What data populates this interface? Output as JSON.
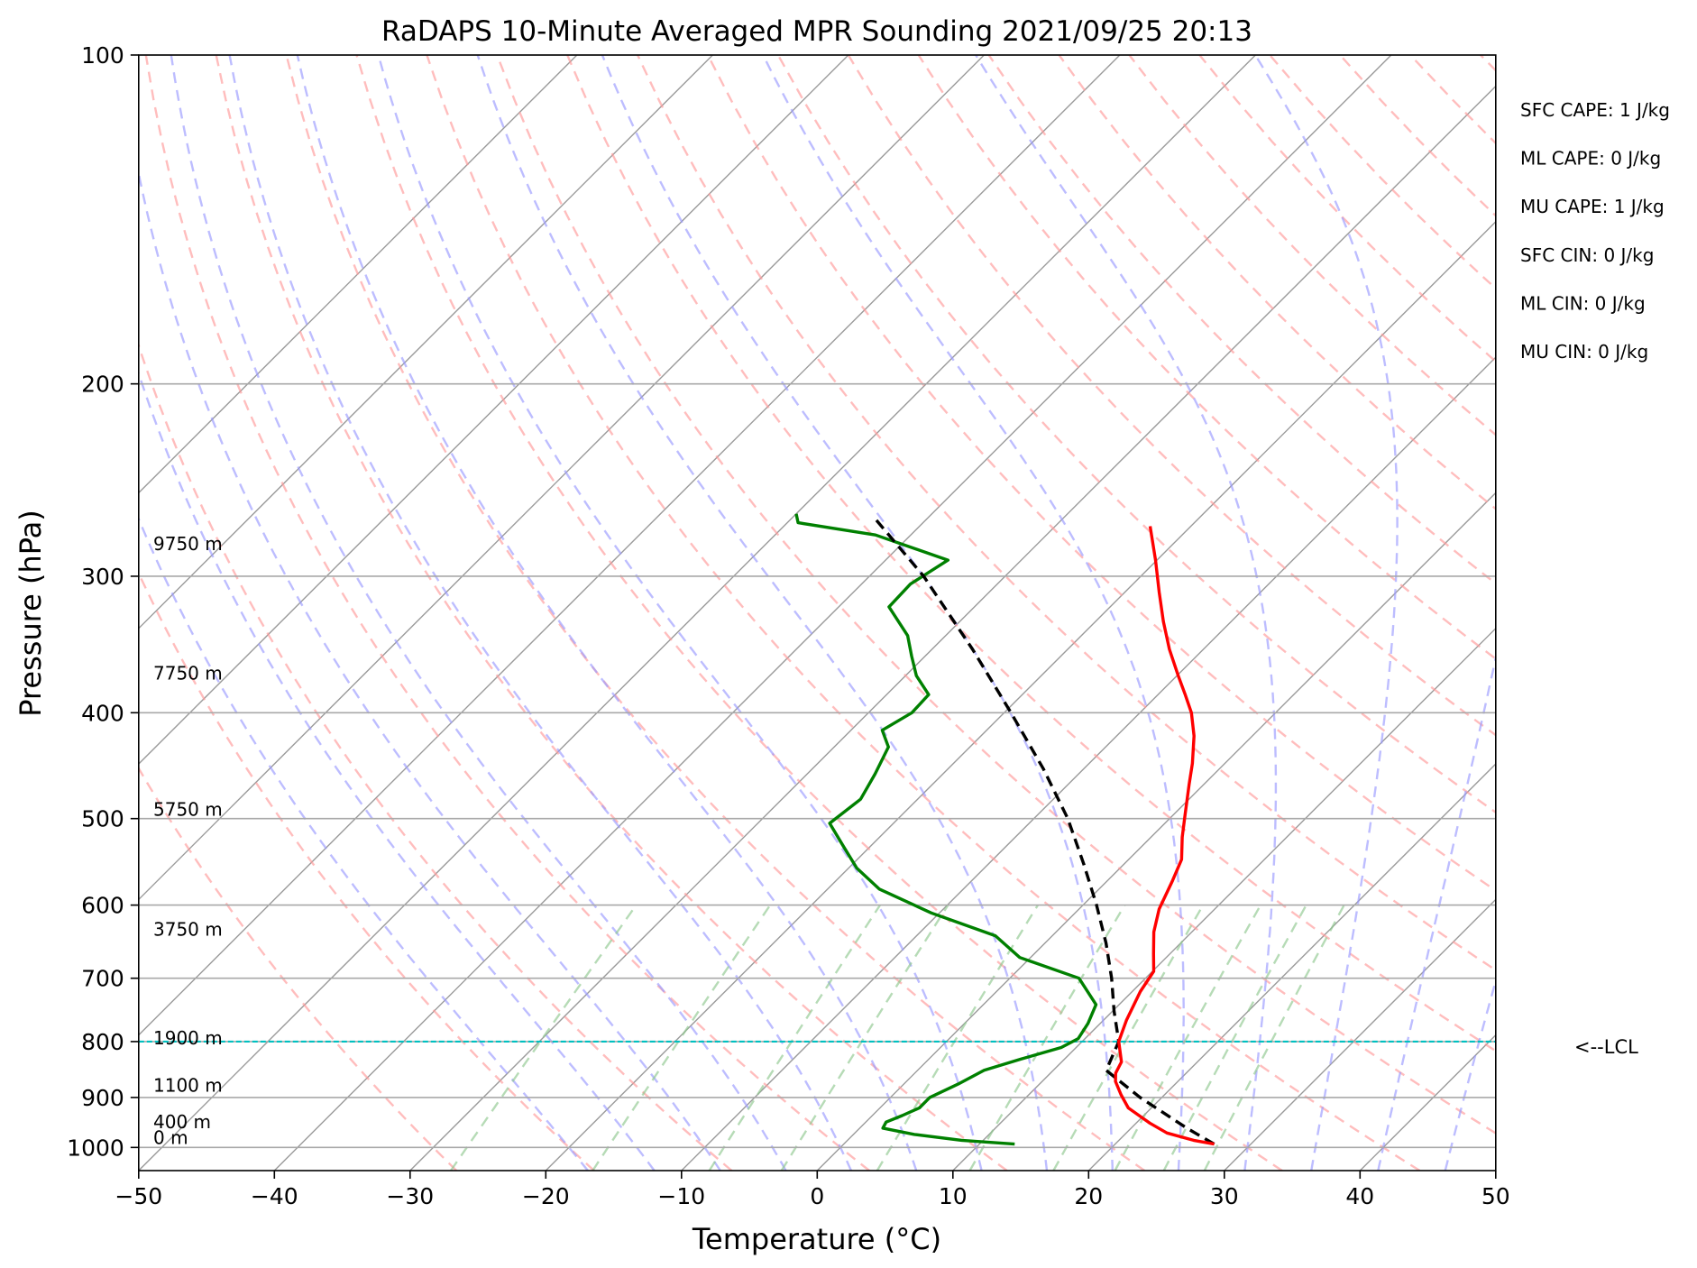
{
  "chart_data": {
    "type": "skew-t",
    "title": "RaDAPS 10-Minute Averaged MPR Sounding 2021/09/25 20:13",
    "xlabel": "Temperature (°C)",
    "ylabel": "Pressure (hPa)",
    "xlim": [
      -50,
      50
    ],
    "ylim": [
      1050,
      100
    ],
    "y_scale": "log",
    "grid": true,
    "x_ticks": [
      "−50",
      "−40",
      "−30",
      "−20",
      "−10",
      "0",
      "10",
      "20",
      "30",
      "40",
      "50"
    ],
    "y_ticks": [
      "100",
      "200",
      "300",
      "400",
      "500",
      "600",
      "700",
      "800",
      "900",
      "1000"
    ],
    "height_labels": [
      {
        "p": 993,
        "label": "0 m"
      },
      {
        "p": 960,
        "label": "400 m"
      },
      {
        "p": 889,
        "label": "1100 m"
      },
      {
        "p": 805,
        "label": "1900 m"
      },
      {
        "p": 640,
        "label": "3750 m"
      },
      {
        "p": 497,
        "label": "5750 m"
      },
      {
        "p": 373,
        "label": "7750 m"
      },
      {
        "p": 284,
        "label": "9750 m"
      }
    ],
    "indices": [
      "SFC CAPE: 1 J/kg",
      "ML CAPE: 0 J/kg",
      "MU CAPE: 1 J/kg",
      "SFC CIN: 0 J/kg",
      "ML CIN: 0 J/kg",
      "MU CIN: 0 J/kg"
    ],
    "lcl": {
      "p": 800,
      "label": "<--LCL"
    },
    "temperature": [
      [
        993,
        27.3
      ],
      [
        985,
        25.5
      ],
      [
        970,
        23.0
      ],
      [
        950,
        21.0
      ],
      [
        920,
        18.3
      ],
      [
        895,
        16.8
      ],
      [
        870,
        15.4
      ],
      [
        855,
        14.8
      ],
      [
        835,
        14.4
      ],
      [
        800,
        12.7
      ],
      [
        765,
        11.7
      ],
      [
        720,
        10.6
      ],
      [
        690,
        10.1
      ],
      [
        665,
        8.8
      ],
      [
        635,
        7.2
      ],
      [
        605,
        5.9
      ],
      [
        570,
        4.8
      ],
      [
        545,
        3.9
      ],
      [
        520,
        2.3
      ],
      [
        495,
        0.8
      ],
      [
        465,
        -1.1
      ],
      [
        445,
        -2.4
      ],
      [
        420,
        -4.3
      ],
      [
        400,
        -6.2
      ],
      [
        385,
        -8.0
      ],
      [
        370,
        -9.9
      ],
      [
        350,
        -12.5
      ],
      [
        330,
        -15.0
      ],
      [
        310,
        -17.5
      ],
      [
        290,
        -20.1
      ],
      [
        270,
        -23.0
      ]
    ],
    "dewpoint": [
      [
        993,
        12.6
      ],
      [
        985,
        8.4
      ],
      [
        973,
        4.5
      ],
      [
        960,
        1.7
      ],
      [
        948,
        1.5
      ],
      [
        935,
        2.2
      ],
      [
        920,
        2.9
      ],
      [
        900,
        2.9
      ],
      [
        875,
        4.0
      ],
      [
        850,
        4.9
      ],
      [
        830,
        6.8
      ],
      [
        810,
        8.9
      ],
      [
        795,
        9.5
      ],
      [
        770,
        9.1
      ],
      [
        740,
        8.3
      ],
      [
        700,
        5.1
      ],
      [
        670,
        -0.8
      ],
      [
        640,
        -4.2
      ],
      [
        610,
        -10.6
      ],
      [
        580,
        -16.2
      ],
      [
        555,
        -19.4
      ],
      [
        530,
        -22.0
      ],
      [
        505,
        -24.7
      ],
      [
        480,
        -24.2
      ],
      [
        455,
        -25.0
      ],
      [
        430,
        -26.0
      ],
      [
        415,
        -27.7
      ],
      [
        400,
        -26.8
      ],
      [
        385,
        -26.9
      ],
      [
        370,
        -29.2
      ],
      [
        355,
        -31.0
      ],
      [
        340,
        -32.8
      ],
      [
        320,
        -36.3
      ],
      [
        305,
        -36.4
      ],
      [
        290,
        -35.4
      ],
      [
        275,
        -42.6
      ],
      [
        268,
        -49.2
      ],
      [
        263,
        -50.0
      ]
    ],
    "parcel": [
      [
        993,
        27.3
      ],
      [
        960,
        24.1
      ],
      [
        900,
        18.4
      ],
      [
        850,
        13.9
      ],
      [
        800,
        12.7
      ],
      [
        750,
        10.1
      ],
      [
        700,
        7.5
      ],
      [
        650,
        4.5
      ],
      [
        600,
        1.0
      ],
      [
        550,
        -3.0
      ],
      [
        500,
        -7.5
      ],
      [
        450,
        -13.0
      ],
      [
        400,
        -19.5
      ],
      [
        350,
        -27.0
      ],
      [
        300,
        -36.0
      ],
      [
        265,
        -44.0
      ]
    ],
    "colors": {
      "temperature": "#ff0000",
      "dewpoint": "#008000",
      "parcel": "#000000",
      "lcl": "#00c0c0",
      "isotherm": "#9a9a9a",
      "dry_adiabat": "#ff9a9a",
      "moist_adiabat": "#9a9aff",
      "mixing_ratio": "#8fc88f"
    }
  }
}
